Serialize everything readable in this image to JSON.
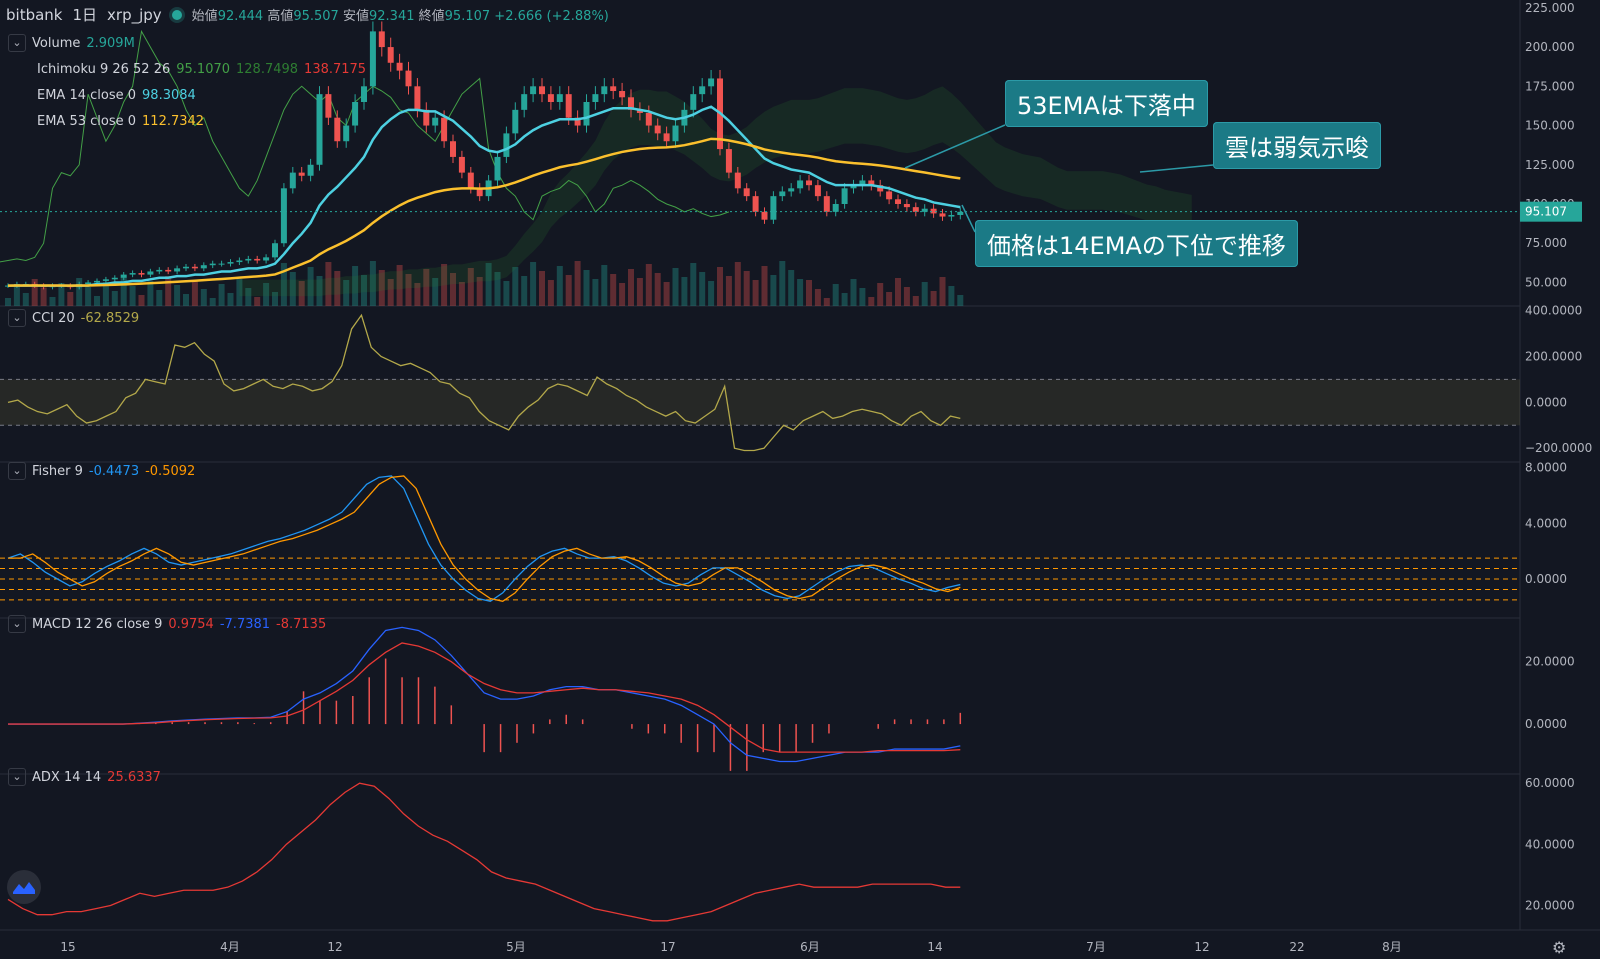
{
  "header": {
    "exchange": "bitbank",
    "interval": "1日",
    "symbol": "xrp_jpy",
    "open_label": "始値",
    "open": "92.444",
    "high_label": "高値",
    "high": "95.507",
    "low_label": "安値",
    "low": "92.341",
    "close_label": "終値",
    "close": "95.107",
    "change": "+2.666 (+2.88%)"
  },
  "legends": {
    "volume": {
      "name": "Volume",
      "value": "2.909M"
    },
    "ichimoku": {
      "name": "Ichimoku 9 26 52 26",
      "v1": "95.1070",
      "v2": "128.7498",
      "v3": "138.7175"
    },
    "ema14": {
      "name": "EMA 14 close 0",
      "value": "98.3084"
    },
    "ema53": {
      "name": "EMA 53 close 0",
      "value": "112.7342"
    },
    "cci": {
      "name": "CCI 20",
      "value": "-62.8529"
    },
    "fisher": {
      "name": "Fisher 9",
      "v1": "-0.4473",
      "v2": "-0.5092"
    },
    "macd": {
      "name": "MACD 12 26 close 9",
      "v1": "0.9754",
      "v2": "-7.7381",
      "v3": "-8.7135"
    },
    "adx": {
      "name": "ADX 14 14",
      "value": "25.6337"
    }
  },
  "callouts": {
    "ema53": "53EMAは下落中",
    "cloud": "雲は弱気示唆",
    "price": "価格は14EMAの下位で推移"
  },
  "price_axis": {
    "ticks": [
      "225.000",
      "200.000",
      "175.000",
      "150.000",
      "125.000",
      "100.000",
      "75.000",
      "50.000"
    ],
    "current": "95.107"
  },
  "cci_axis": {
    "ticks": [
      "400.0000",
      "200.0000",
      "0.0000",
      "−200.0000"
    ]
  },
  "fisher_axis": {
    "ticks": [
      "8.0000",
      "4.0000",
      "0.0000"
    ]
  },
  "macd_axis": {
    "ticks": [
      "20.0000",
      "0.0000"
    ]
  },
  "adx_axis": {
    "ticks": [
      "60.0000",
      "40.0000",
      "20.0000"
    ]
  },
  "time_axis": {
    "labels": [
      "15",
      "4月",
      "12",
      "5月",
      "17",
      "6月",
      "14",
      "7月",
      "12",
      "22",
      "8月"
    ]
  },
  "colors": {
    "bg": "#131722",
    "up": "#26a69a",
    "down": "#ef5350",
    "ema14": "#4dd0e1",
    "ema53": "#fbc02d",
    "cci": "#b3a84a",
    "fisher": "#2196f3",
    "fisher_sig": "#ff9800",
    "macd": "#2962ff",
    "signal": "#e53935",
    "adx": "#e53935",
    "callout": "#1b7a86"
  },
  "chart_data": [
    {
      "type": "candlestick",
      "title": "xrp_jpy 1日",
      "ylim": [
        35,
        230
      ],
      "close": [
        48,
        49,
        49,
        48,
        47,
        48,
        48,
        47,
        49,
        50,
        51,
        52,
        53,
        55,
        56,
        55,
        57,
        58,
        57,
        59,
        60,
        59,
        61,
        62,
        62,
        63,
        64,
        65,
        64,
        66,
        75,
        110,
        120,
        118,
        125,
        170,
        155,
        140,
        150,
        165,
        175,
        210,
        200,
        190,
        185,
        175,
        160,
        150,
        155,
        140,
        130,
        120,
        110,
        105,
        115,
        130,
        145,
        160,
        170,
        175,
        170,
        165,
        170,
        155,
        150,
        165,
        170,
        175,
        172,
        168,
        160,
        158,
        150,
        145,
        140,
        150,
        160,
        170,
        175,
        180,
        135,
        120,
        110,
        105,
        95,
        90,
        105,
        108,
        110,
        115,
        112,
        105,
        95,
        100,
        110,
        112,
        115,
        112,
        108,
        103,
        100,
        98,
        95,
        97,
        94,
        92,
        93,
        95
      ],
      "ema14": [
        48,
        48,
        48,
        48,
        48,
        48,
        48,
        48,
        48,
        48,
        49,
        49,
        50,
        50,
        51,
        51,
        52,
        53,
        53,
        54,
        54,
        55,
        55,
        56,
        57,
        57,
        58,
        59,
        59,
        60,
        62,
        68,
        75,
        81,
        88,
        99,
        106,
        111,
        117,
        123,
        130,
        141,
        149,
        154,
        158,
        160,
        160,
        159,
        159,
        156,
        153,
        148,
        143,
        137,
        134,
        133,
        135,
        138,
        143,
        147,
        150,
        152,
        154,
        154,
        154,
        155,
        157,
        159,
        161,
        161,
        161,
        160,
        159,
        157,
        155,
        154,
        155,
        157,
        160,
        162,
        158,
        153,
        147,
        141,
        135,
        129,
        126,
        124,
        122,
        121,
        120,
        117,
        114,
        112,
        112,
        112,
        112,
        112,
        111,
        110,
        108,
        106,
        104,
        103,
        101,
        100,
        99,
        98
      ]
    },
    {
      "type": "line",
      "name": "CCI 20",
      "ylim": [
        -260,
        420
      ],
      "values": [
        0,
        10,
        -20,
        -40,
        -50,
        -30,
        -10,
        -60,
        -90,
        -80,
        -60,
        -40,
        20,
        40,
        100,
        90,
        80,
        250,
        240,
        260,
        210,
        180,
        80,
        50,
        60,
        80,
        100,
        70,
        60,
        80,
        70,
        50,
        60,
        90,
        160,
        320,
        380,
        240,
        200,
        180,
        160,
        170,
        150,
        130,
        90,
        80,
        40,
        20,
        -40,
        -80,
        -100,
        -120,
        -60,
        -20,
        10,
        60,
        80,
        70,
        50,
        30,
        110,
        80,
        60,
        30,
        10,
        -20,
        -40,
        -60,
        -40,
        -80,
        -90,
        -60,
        -30,
        70,
        -200,
        -210,
        -210,
        -200,
        -150,
        -100,
        -120,
        -80,
        -60,
        -40,
        -70,
        -60,
        -40,
        -30,
        -40,
        -50,
        -80,
        -100,
        -60,
        -40,
        -80,
        -100,
        -60,
        -70
      ]
    },
    {
      "type": "line",
      "name": "Fisher 9",
      "ylim": [
        -2.8,
        8.4
      ],
      "values": [
        1.5,
        1.8,
        1.2,
        0.5,
        0,
        -0.5,
        -0.2,
        0.4,
        0.9,
        1.3,
        1.8,
        2.2,
        1.8,
        1.2,
        1,
        1.2,
        1.4,
        1.6,
        1.8,
        2.1,
        2.4,
        2.7,
        2.9,
        3.2,
        3.5,
        3.9,
        4.3,
        4.8,
        5.8,
        6.8,
        7.3,
        7.4,
        6.5,
        4.5,
        2.5,
        1,
        0,
        -0.8,
        -1.4,
        -1.6,
        -1,
        0,
        0.9,
        1.6,
        2,
        2.2,
        1.8,
        1.5,
        1.5,
        1.6,
        1.3,
        0.8,
        0.2,
        -0.3,
        -0.5,
        -0.3,
        0.3,
        0.8,
        0.8,
        0.3,
        -0.2,
        -0.8,
        -1.2,
        -1.4,
        -1.2,
        -0.6,
        0,
        0.5,
        0.9,
        1,
        0.8,
        0.4,
        0,
        -0.3,
        -0.7,
        -0.9,
        -0.6,
        -0.4
      ]
    },
    {
      "type": "bar+line",
      "name": "MACD 12 26 close 9",
      "ylim": [
        -16,
        34
      ],
      "macd": [
        0,
        0,
        0,
        0,
        0,
        0,
        0,
        0,
        0.3,
        0.6,
        1,
        1.3,
        1.6,
        1.8,
        2,
        2,
        2.2,
        4,
        8,
        10,
        13,
        17,
        24,
        30,
        31,
        30,
        27,
        22,
        16,
        10,
        8,
        8,
        9,
        11,
        12,
        12,
        11,
        11,
        10,
        9,
        8,
        6,
        3,
        0,
        -6,
        -10,
        -11,
        -12,
        -12,
        -11,
        -10,
        -9,
        -9,
        -9,
        -8,
        -8,
        -8,
        -8,
        -7
      ],
      "signal": [
        0,
        0,
        0,
        0,
        0,
        0,
        0,
        0,
        0.2,
        0.4,
        0.8,
        1.1,
        1.4,
        1.6,
        1.8,
        1.9,
        2,
        2.6,
        4.5,
        7.5,
        10.5,
        14,
        19,
        23,
        26,
        25,
        23,
        20,
        16,
        13,
        11,
        10,
        10,
        10.5,
        11,
        11.5,
        11,
        11,
        10.5,
        10,
        9,
        8,
        6,
        3,
        -1,
        -5,
        -8,
        -9,
        -9,
        -9,
        -9,
        -9,
        -9,
        -8.5,
        -8.5,
        -8.5,
        -8.5,
        -8.5,
        -8.2
      ]
    },
    {
      "type": "line",
      "name": "ADX 14 14",
      "ylim": [
        12,
        63
      ],
      "values": [
        22,
        19,
        17,
        17,
        18,
        18,
        19,
        20,
        22,
        24,
        23,
        24,
        25,
        25,
        25,
        26,
        28,
        31,
        35,
        40,
        44,
        48,
        53,
        57,
        60,
        59,
        55,
        50,
        46,
        43,
        41,
        38,
        35,
        31,
        29,
        28,
        27,
        25,
        23,
        21,
        19,
        18,
        17,
        16,
        15,
        15,
        16,
        17,
        18,
        20,
        22,
        24,
        25,
        26,
        27,
        26,
        26,
        26,
        26,
        27,
        27,
        27,
        27,
        27,
        26,
        26
      ]
    }
  ]
}
